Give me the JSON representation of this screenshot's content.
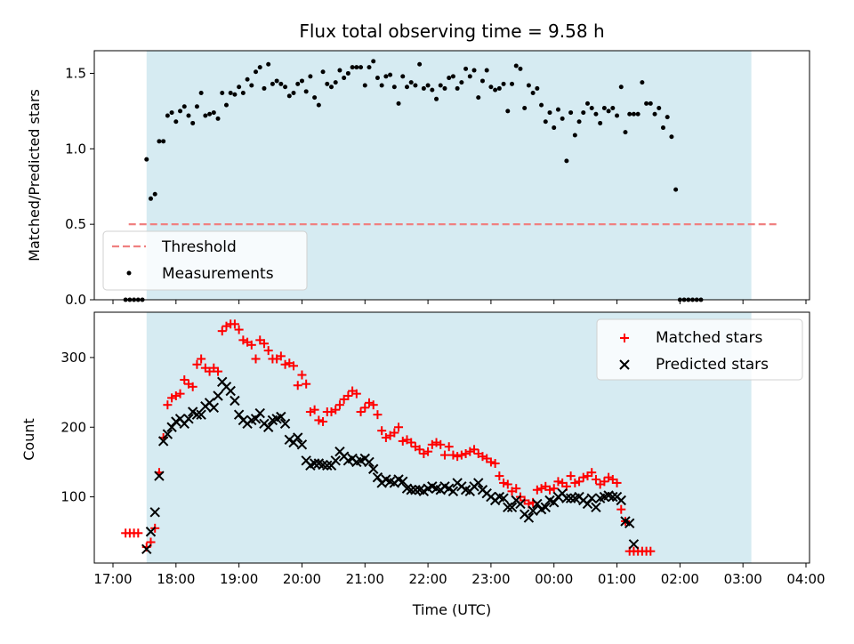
{
  "chart_data": [
    {
      "type": "scatter",
      "title": "Flux total observing time = 9.58 h",
      "xlabel": "",
      "ylabel": "Matched/Predicted stars",
      "xlim": [
        "17:00",
        "04:00"
      ],
      "ylim": [
        0,
        1.65
      ],
      "yticks": [
        "0.0",
        "0.5",
        "1.0",
        "1.5"
      ],
      "shaded_interval": [
        "17:32",
        "03:08"
      ],
      "threshold": {
        "name": "Threshold",
        "value": 0.5,
        "from": "17:15",
        "to": "03:35",
        "color": "#f08080"
      },
      "legend": {
        "position": "lower-left",
        "entries": [
          "Threshold",
          "Measurements"
        ]
      },
      "series": [
        {
          "name": "Measurements",
          "color": "#000000",
          "x_start": "17:12",
          "x_step_minutes": 4,
          "values": [
            0.0,
            0.0,
            0.0,
            0.0,
            0.0,
            0.93,
            0.67,
            0.7,
            1.05,
            1.05,
            1.22,
            1.24,
            1.18,
            1.25,
            1.28,
            1.22,
            1.17,
            1.28,
            1.37,
            1.22,
            1.23,
            1.24,
            1.2,
            1.37,
            1.29,
            1.37,
            1.36,
            1.41,
            1.37,
            1.46,
            1.42,
            1.51,
            1.54,
            1.4,
            1.56,
            1.43,
            1.45,
            1.43,
            1.41,
            1.35,
            1.37,
            1.43,
            1.45,
            1.38,
            1.48,
            1.34,
            1.29,
            1.51,
            1.43,
            1.41,
            1.44,
            1.52,
            1.47,
            1.5,
            1.54,
            1.54,
            1.54,
            1.42,
            1.54,
            1.58,
            1.47,
            1.42,
            1.48,
            1.49,
            1.41,
            1.3,
            1.48,
            1.41,
            1.44,
            1.42,
            1.56,
            1.4,
            1.42,
            1.39,
            1.33,
            1.42,
            1.4,
            1.47,
            1.48,
            1.4,
            1.44,
            1.53,
            1.48,
            1.52,
            1.34,
            1.45,
            1.52,
            1.41,
            1.39,
            1.4,
            1.43,
            1.25,
            1.43,
            1.55,
            1.53,
            1.27,
            1.42,
            1.37,
            1.4,
            1.29,
            1.18,
            1.24,
            1.14,
            1.26,
            1.2,
            0.92,
            1.24,
            1.09,
            1.18,
            1.24,
            1.3,
            1.27,
            1.23,
            1.17,
            1.27,
            1.25,
            1.27,
            1.22,
            1.41,
            1.11,
            1.23,
            1.23,
            1.23,
            1.44,
            1.3,
            1.3,
            1.23,
            1.27,
            1.14,
            1.21,
            1.08,
            0.73,
            0.0,
            0.0,
            0.0,
            0.0,
            0.0,
            0.0
          ]
        }
      ]
    },
    {
      "type": "scatter",
      "title": "",
      "xlabel": "Time (UTC)",
      "ylabel": "Count",
      "xlim": [
        "17:00",
        "04:00"
      ],
      "ylim": [
        5,
        365
      ],
      "xticks": [
        "17:00",
        "18:00",
        "19:00",
        "20:00",
        "21:00",
        "22:00",
        "23:00",
        "00:00",
        "01:00",
        "02:00",
        "03:00",
        "04:00"
      ],
      "yticks": [
        "100",
        "200",
        "300"
      ],
      "shaded_interval": [
        "17:32",
        "03:08"
      ],
      "legend": {
        "position": "top-right",
        "entries": [
          "Matched stars",
          "Predicted stars"
        ]
      },
      "series": [
        {
          "name": "Matched stars",
          "marker": "plus",
          "color": "#ff0000",
          "x_start": "17:12",
          "x_step_minutes": 4,
          "values": [
            48,
            48,
            48,
            48,
            null,
            28,
            35,
            55,
            135,
            185,
            232,
            242,
            245,
            248,
            268,
            262,
            258,
            290,
            298,
            285,
            280,
            285,
            280,
            338,
            345,
            348,
            348,
            340,
            325,
            322,
            318,
            298,
            325,
            320,
            310,
            298,
            298,
            302,
            290,
            292,
            288,
            260,
            275,
            262,
            222,
            225,
            210,
            208,
            222,
            222,
            225,
            232,
            240,
            245,
            252,
            248,
            222,
            228,
            235,
            232,
            218,
            195,
            185,
            188,
            192,
            200,
            180,
            182,
            178,
            172,
            168,
            162,
            165,
            175,
            178,
            175,
            160,
            172,
            160,
            158,
            160,
            162,
            165,
            168,
            162,
            158,
            155,
            150,
            148,
            130,
            120,
            118,
            108,
            112,
            100,
            95,
            90,
            92,
            110,
            112,
            115,
            110,
            112,
            122,
            120,
            115,
            130,
            120,
            122,
            128,
            130,
            135,
            125,
            118,
            122,
            128,
            125,
            120,
            82,
            65,
            22,
            22,
            22,
            22,
            22,
            22
          ]
        },
        {
          "name": "Predicted stars",
          "marker": "x",
          "color": "#000000",
          "x_start": "17:32",
          "x_step_minutes": 4,
          "values": [
            25,
            50,
            78,
            130,
            180,
            190,
            200,
            208,
            212,
            205,
            212,
            222,
            218,
            218,
            230,
            235,
            228,
            245,
            265,
            258,
            252,
            238,
            218,
            210,
            205,
            210,
            212,
            220,
            205,
            200,
            210,
            212,
            215,
            205,
            182,
            178,
            185,
            175,
            152,
            145,
            148,
            148,
            146,
            145,
            145,
            152,
            165,
            158,
            152,
            155,
            150,
            152,
            155,
            150,
            140,
            128,
            120,
            125,
            122,
            120,
            125,
            122,
            112,
            110,
            110,
            110,
            108,
            112,
            115,
            112,
            110,
            115,
            112,
            108,
            120,
            115,
            110,
            108,
            115,
            120,
            110,
            105,
            100,
            95,
            100,
            98,
            85,
            85,
            95,
            90,
            75,
            70,
            80,
            90,
            82,
            85,
            95,
            92,
            100,
            105,
            98,
            98,
            98,
            100,
            95,
            90,
            98,
            85,
            98,
            100,
            102,
            100,
            100,
            95,
            65,
            62,
            32
          ]
        }
      ]
    }
  ]
}
